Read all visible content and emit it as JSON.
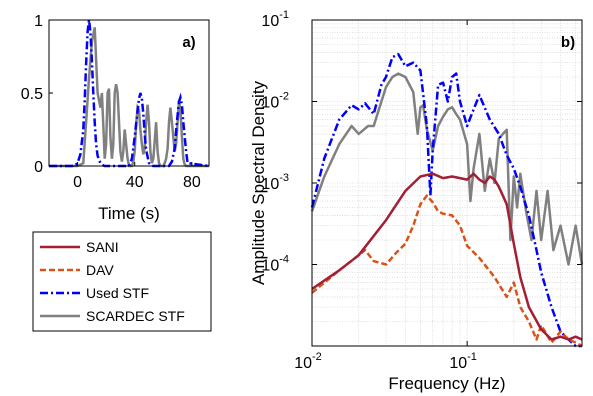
{
  "colors": {
    "SANI": "#a31f34",
    "DAV": "#d95319",
    "Used STF": "#0000ff",
    "SCARDEC STF": "#808080"
  },
  "chart_data": [
    {
      "id": "a",
      "type": "line",
      "panel_label": "a)",
      "xlabel": "Time (s)",
      "ylabel": "",
      "xlim": [
        -20,
        92
      ],
      "ylim": [
        0,
        1
      ],
      "xticks": [
        "0",
        "40",
        "80"
      ],
      "xtick_values": [
        0,
        40,
        80
      ],
      "yticks": [
        "0",
        "0.5",
        "1"
      ],
      "ytick_values": [
        0,
        0.5,
        1
      ],
      "grid": false,
      "series": [
        {
          "name": "SCARDEC STF",
          "x": [
            -20,
            0,
            4,
            6,
            8,
            10,
            12,
            14,
            15,
            16,
            17,
            18,
            19,
            20,
            21,
            22,
            23,
            24,
            25,
            26,
            27,
            28,
            29,
            30,
            31,
            32,
            33,
            34,
            35,
            36,
            38,
            39,
            40,
            41,
            42,
            43,
            44,
            45,
            46,
            47,
            48,
            49,
            50,
            51,
            52,
            53,
            54,
            55,
            56,
            57,
            58,
            59,
            60,
            61,
            62,
            63,
            64,
            65,
            66,
            67,
            68,
            69,
            70,
            71,
            72,
            73,
            74,
            75,
            76,
            78,
            80,
            92
          ],
          "y": [
            0,
            0,
            0.02,
            0.3,
            0.6,
            0.85,
            0.95,
            0.5,
            0.45,
            0.4,
            0.5,
            0.28,
            0.05,
            0.15,
            0.5,
            0.53,
            0.2,
            0.05,
            0.15,
            0.5,
            0.56,
            0.5,
            0.3,
            0.1,
            0.03,
            0.1,
            0.25,
            0.15,
            0.05,
            0,
            0,
            0.03,
            0.1,
            0.28,
            0.4,
            0.38,
            0.25,
            0.15,
            0.08,
            0.12,
            0.3,
            0.42,
            0.3,
            0.1,
            0.02,
            0.05,
            0.17,
            0.3,
            0.1,
            0.02,
            0,
            0,
            0,
            0.02,
            0.05,
            0.12,
            0.3,
            0.4,
            0.3,
            0.2,
            0.1,
            0.15,
            0.3,
            0.45,
            0.38,
            0.2,
            0.05,
            0.01,
            0,
            0,
            0,
            0
          ]
        },
        {
          "name": "Used STF",
          "x": [
            -20,
            -4,
            -2,
            0,
            2,
            4,
            5,
            6,
            7,
            8,
            9,
            10,
            11,
            12,
            13,
            14,
            16,
            18,
            19,
            36,
            38,
            40,
            42,
            43,
            44,
            45,
            46,
            47,
            48,
            50,
            52,
            53,
            64,
            66,
            68,
            69,
            70,
            71,
            72,
            73,
            74,
            76,
            77,
            92
          ],
          "y": [
            0,
            0,
            0.003,
            0.02,
            0.08,
            0.25,
            0.45,
            0.7,
            0.92,
            1.0,
            0.92,
            0.72,
            0.5,
            0.3,
            0.15,
            0.07,
            0.02,
            0.004,
            0,
            0,
            0.05,
            0.2,
            0.38,
            0.46,
            0.5,
            0.46,
            0.36,
            0.22,
            0.11,
            0.02,
            0.003,
            0,
            0,
            0.03,
            0.12,
            0.24,
            0.35,
            0.44,
            0.47,
            0.42,
            0.3,
            0.1,
            0.02,
            0
          ]
        }
      ]
    },
    {
      "id": "b",
      "type": "line",
      "panel_label": "b)",
      "xlabel": "Frequency (Hz)",
      "ylabel": "Amplitude Spectral Density",
      "xscale": "log",
      "yscale": "log",
      "xlim": [
        0.01,
        0.55
      ],
      "ylim": [
        1e-05,
        0.1
      ],
      "xticks": [
        "10",
        "10"
      ],
      "xtick_exponents": [
        "-2",
        "-1"
      ],
      "xtick_values": [
        0.01,
        0.1
      ],
      "yticks": [
        "10",
        "10",
        "10",
        "10"
      ],
      "ytick_exponents": [
        "-4",
        "-3",
        "-2",
        "-1"
      ],
      "ytick_values": [
        0.0001,
        0.001,
        0.01,
        0.1
      ],
      "grid": true,
      "legend_position": "separate-left",
      "series": [
        {
          "name": "SANI",
          "x": [
            0.01,
            0.015,
            0.02,
            0.03,
            0.04,
            0.05,
            0.06,
            0.07,
            0.08,
            0.09,
            0.1,
            0.11,
            0.12,
            0.13,
            0.14,
            0.15,
            0.16,
            0.18,
            0.2,
            0.22,
            0.25,
            0.3,
            0.35,
            0.4,
            0.45,
            0.5,
            0.55
          ],
          "y": [
            5e-05,
            8.5e-05,
            0.00013,
            0.00035,
            0.0008,
            0.0012,
            0.0013,
            0.00115,
            0.0012,
            0.00115,
            0.0011,
            0.0013,
            0.0011,
            0.001,
            0.0012,
            0.0011,
            0.0009,
            0.00055,
            0.00018,
            7e-05,
            3e-05,
            1.6e-05,
            1.2e-05,
            1.3e-05,
            1.2e-05,
            1.3e-05,
            1.2e-05
          ]
        },
        {
          "name": "DAV",
          "x": [
            0.01,
            0.015,
            0.02,
            0.022,
            0.025,
            0.03,
            0.035,
            0.04,
            0.045,
            0.05,
            0.055,
            0.06,
            0.065,
            0.07,
            0.08,
            0.09,
            0.1,
            0.12,
            0.15,
            0.18,
            0.2,
            0.22,
            0.25,
            0.28,
            0.3,
            0.35,
            0.4,
            0.45,
            0.5,
            0.55
          ],
          "y": [
            4.5e-05,
            8.5e-05,
            0.00013,
            0.00015,
            0.00011,
            0.0001,
            0.00014,
            0.00018,
            0.0003,
            0.00055,
            0.0007,
            0.00058,
            0.00045,
            0.00042,
            0.0004,
            0.0003,
            0.00017,
            0.00012,
            7e-05,
            4e-05,
            6e-05,
            3e-05,
            2e-05,
            1.2e-05,
            1.8e-05,
            1.1e-05,
            1.5e-05,
            1.2e-05,
            1.1e-05,
            1e-05
          ]
        },
        {
          "name": "Used STF",
          "x": [
            0.01,
            0.012,
            0.015,
            0.018,
            0.02,
            0.022,
            0.025,
            0.028,
            0.03,
            0.033,
            0.036,
            0.04,
            0.045,
            0.05,
            0.055,
            0.058,
            0.06,
            0.065,
            0.07,
            0.075,
            0.08,
            0.085,
            0.09,
            0.1,
            0.11,
            0.12,
            0.14,
            0.16,
            0.18,
            0.2,
            0.22,
            0.25,
            0.28,
            0.3,
            0.35,
            0.4,
            0.45,
            0.5,
            0.55
          ],
          "y": [
            0.0005,
            0.002,
            0.006,
            0.009,
            0.008,
            0.0095,
            0.007,
            0.016,
            0.02,
            0.035,
            0.038,
            0.027,
            0.03,
            0.024,
            0.005,
            0.0007,
            0.0025,
            0.016,
            0.017,
            0.01,
            0.02,
            0.022,
            0.01,
            0.005,
            0.008,
            0.012,
            0.006,
            0.004,
            0.0022,
            0.0015,
            0.0009,
            0.0004,
            0.00015,
            8e-05,
            3e-05,
            1.5e-05,
            1.2e-05,
            1e-05,
            1e-05
          ]
        },
        {
          "name": "SCARDEC STF",
          "x": [
            0.01,
            0.012,
            0.015,
            0.018,
            0.02,
            0.023,
            0.025,
            0.028,
            0.03,
            0.033,
            0.036,
            0.04,
            0.045,
            0.048,
            0.05,
            0.052,
            0.055,
            0.06,
            0.065,
            0.07,
            0.075,
            0.08,
            0.085,
            0.09,
            0.1,
            0.105,
            0.11,
            0.12,
            0.13,
            0.14,
            0.15,
            0.16,
            0.17,
            0.18,
            0.19,
            0.2,
            0.21,
            0.22,
            0.24,
            0.26,
            0.28,
            0.3,
            0.33,
            0.36,
            0.4,
            0.45,
            0.5,
            0.55
          ],
          "y": [
            0.00045,
            0.0012,
            0.003,
            0.005,
            0.004,
            0.005,
            0.005,
            0.01,
            0.015,
            0.02,
            0.022,
            0.02,
            0.013,
            0.004,
            0.0085,
            0.009,
            0.0045,
            0.0025,
            0.005,
            0.0065,
            0.008,
            0.0085,
            0.007,
            0.006,
            0.003,
            0.0006,
            0.0015,
            0.004,
            0.0008,
            0.002,
            0.001,
            0.0035,
            0.004,
            0.0045,
            0.0002,
            0.0012,
            0.0005,
            0.0013,
            0.00045,
            0.0002,
            0.0008,
            0.0002,
            0.0008,
            0.00015,
            0.0003,
            0.0001,
            0.0003,
            0.0001
          ]
        }
      ]
    }
  ],
  "legend": {
    "entries": [
      {
        "name": "SANI",
        "style": "solid"
      },
      {
        "name": "DAV",
        "style": "dashed"
      },
      {
        "name": "Used STF",
        "style": "dashdot"
      },
      {
        "name": "SCARDEC STF",
        "style": "solid"
      }
    ]
  }
}
